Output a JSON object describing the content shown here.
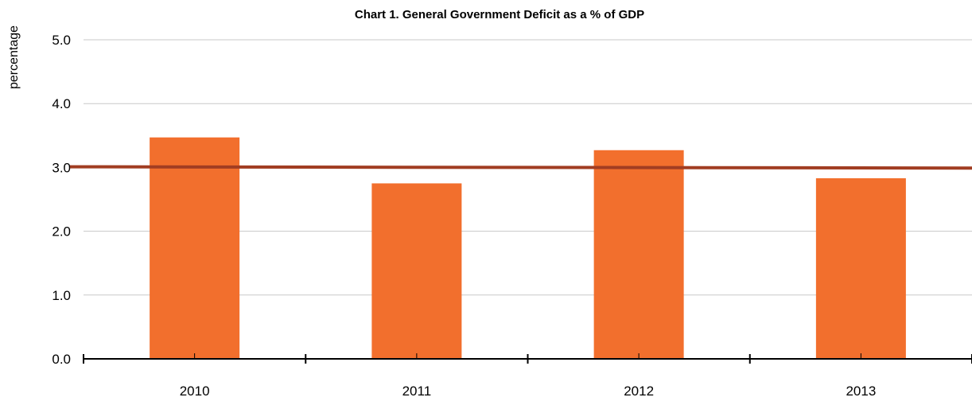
{
  "chart_data": {
    "type": "bar",
    "title": "Chart 1.  General Government Deficit as a % of GDP",
    "xlabel": "",
    "ylabel": "percentage",
    "categories": [
      "2010",
      "2011",
      "2012",
      "2013"
    ],
    "series": [
      {
        "values": [
          3.47,
          2.75,
          3.27,
          2.83
        ]
      }
    ],
    "reference_line": {
      "start": 3.01,
      "end": 2.99
    },
    "ylim": [
      0,
      5
    ],
    "yticks": [
      "0.0",
      "1.0",
      "2.0",
      "3.0",
      "4.0",
      "5.0"
    ],
    "grid": true,
    "legend": "none",
    "colors": {
      "bar": "#f26f2d",
      "reference_line": "#a13d22",
      "grid": "#c8c8c8",
      "axis": "#000000",
      "text": "#000000"
    }
  }
}
